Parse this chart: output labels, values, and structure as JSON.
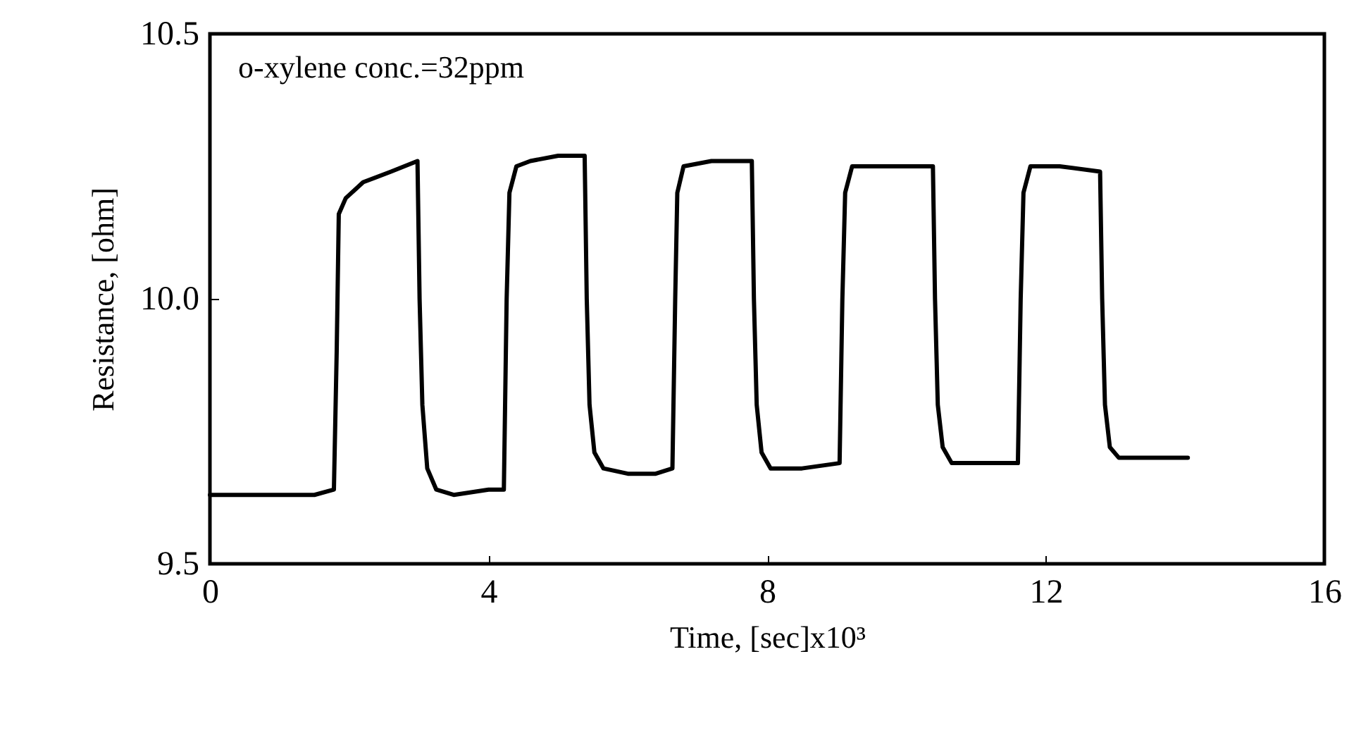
{
  "chart_data": {
    "type": "line",
    "xlabel": "Time, [sec]x10³",
    "ylabel": "Resistance, [ohm]",
    "annotations": [
      "o-xylene conc.=32ppm"
    ],
    "xlim": [
      0,
      16
    ],
    "xticks": [
      0,
      4,
      8,
      12,
      16
    ],
    "ylim": [
      9.5,
      10.5
    ],
    "yticks": [
      9.5,
      {
        "value": 10,
        "label": "10.0"
      },
      10.5
    ],
    "grid": false,
    "marker": "none",
    "line_style": "solid",
    "series": [
      {
        "color": "#000000",
        "x": [
          0,
          0.5,
          1,
          1.5,
          1.78,
          1.82,
          1.85,
          1.95,
          2.2,
          2.6,
          2.98,
          3.01,
          3.05,
          3.12,
          3.25,
          3.5,
          4.0,
          4.22,
          4.26,
          4.3,
          4.4,
          4.6,
          5.0,
          5.38,
          5.41,
          5.45,
          5.52,
          5.65,
          6.0,
          6.4,
          6.64,
          6.68,
          6.71,
          6.8,
          7.2,
          7.78,
          7.81,
          7.85,
          7.92,
          8.05,
          8.5,
          9.04,
          9.08,
          9.12,
          9.22,
          9.7,
          10.38,
          10.41,
          10.45,
          10.52,
          10.65,
          11.1,
          11.6,
          11.64,
          11.68,
          11.78,
          12.2,
          12.78,
          12.81,
          12.85,
          12.92,
          13.05,
          13.5,
          14.04
        ],
        "values": [
          9.63,
          9.63,
          9.63,
          9.63,
          9.64,
          9.9,
          10.16,
          10.19,
          10.22,
          10.24,
          10.26,
          10.0,
          9.8,
          9.68,
          9.64,
          9.63,
          9.64,
          9.64,
          10.0,
          10.2,
          10.25,
          10.26,
          10.27,
          10.27,
          10.0,
          9.8,
          9.71,
          9.68,
          9.67,
          9.67,
          9.68,
          10.0,
          10.2,
          10.25,
          10.26,
          10.26,
          10.0,
          9.8,
          9.71,
          9.68,
          9.68,
          9.69,
          10.0,
          10.2,
          10.25,
          10.25,
          10.25,
          10.0,
          9.8,
          9.72,
          9.69,
          9.69,
          9.69,
          10.0,
          10.2,
          10.25,
          10.25,
          10.24,
          10.0,
          9.8,
          9.72,
          9.7,
          9.7,
          9.7
        ]
      }
    ]
  }
}
